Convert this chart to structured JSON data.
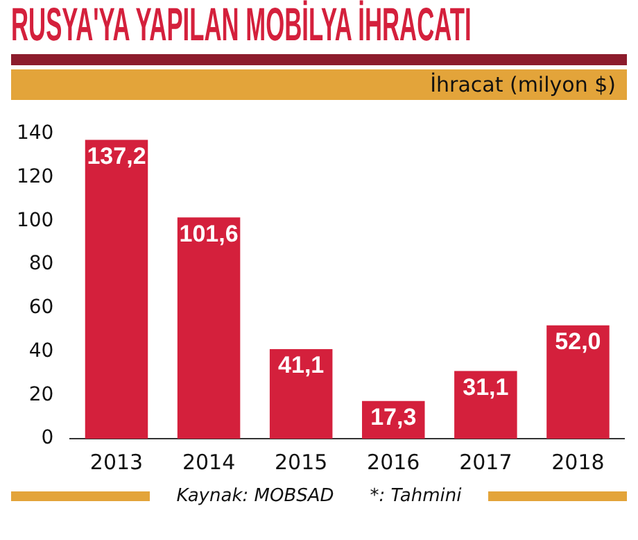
{
  "chart_data": {
    "type": "bar",
    "title": "RUSYA'YA YAPILAN MOBİLYA İHRACATI",
    "ylabel": "İhracat (milyon $)",
    "categories": [
      "2013",
      "2014",
      "2015",
      "2016",
      "2017",
      "2018"
    ],
    "values": [
      137.2,
      101.6,
      41.1,
      17.3,
      31.1,
      52.0
    ],
    "value_labels": [
      "137,2",
      "101,6",
      "41,1",
      "17,3",
      "31,1",
      "52,0"
    ],
    "color": "#d4203c",
    "ylim": [
      0,
      140
    ],
    "yticks": [
      0,
      20,
      40,
      60,
      80,
      100,
      120,
      140
    ],
    "grid": false,
    "legend": false,
    "annotations": [
      "Kaynak: MOBSAD",
      "*: Tahmini"
    ]
  }
}
